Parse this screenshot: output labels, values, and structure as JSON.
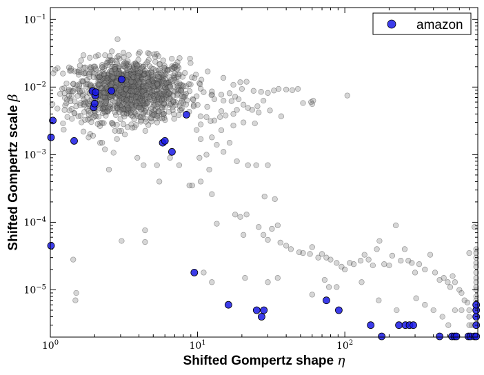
{
  "chart_data": {
    "type": "scatter",
    "xlabel": "Shifted Gompertz shape",
    "xlabel_symbol": "η",
    "ylabel": "Shifted Gompertz scale",
    "ylabel_symbol": "β",
    "x_scale": "log",
    "y_scale": "log",
    "xlim": [
      1,
      800
    ],
    "ylim": [
      2e-06,
      0.15
    ],
    "x_ticks": [
      {
        "value": 1,
        "label_base": "10",
        "label_exp": "0"
      },
      {
        "value": 10,
        "label_base": "10",
        "label_exp": "1"
      },
      {
        "value": 100,
        "label_base": "10",
        "label_exp": "2"
      }
    ],
    "y_ticks": [
      {
        "value": 1e-05,
        "label_base": "10",
        "label_exp": "−5"
      },
      {
        "value": 0.0001,
        "label_base": "10",
        "label_exp": "−4"
      },
      {
        "value": 0.001,
        "label_base": "10",
        "label_exp": "−3"
      },
      {
        "value": 0.01,
        "label_base": "10",
        "label_exp": "−2"
      },
      {
        "value": 0.1,
        "label_base": "10",
        "label_exp": "−1"
      }
    ],
    "grid": false,
    "legend": {
      "position": "top-right",
      "entries": [
        "amazon"
      ]
    },
    "colors": {
      "highlight": "#1a1ae6",
      "background_points": "#808080"
    },
    "series": [
      {
        "name": "amazon",
        "highlighted": true,
        "points": [
          [
            1.0,
            0.0018
          ],
          [
            1.0,
            4.5e-05
          ],
          [
            1.04,
            0.0032
          ],
          [
            1.45,
            0.0016
          ],
          [
            1.93,
            0.0087
          ],
          [
            1.97,
            0.005
          ],
          [
            2.0,
            0.0057
          ],
          [
            2.02,
            0.0075
          ],
          [
            2.03,
            0.0084
          ],
          [
            2.6,
            0.0088
          ],
          [
            3.05,
            0.013
          ],
          [
            5.8,
            0.0015
          ],
          [
            6.0,
            0.0016
          ],
          [
            6.7,
            0.0011
          ],
          [
            8.4,
            0.0039
          ],
          [
            9.5,
            1.8e-05
          ],
          [
            16.2,
            6e-06
          ],
          [
            25.2,
            5e-06
          ],
          [
            27.2,
            4e-06
          ],
          [
            28.2,
            5e-06
          ],
          [
            75.0,
            7e-06
          ],
          [
            91.0,
            5e-06
          ],
          [
            150.0,
            3e-06
          ],
          [
            178.0,
            2e-06
          ],
          [
            233.0,
            3e-06
          ],
          [
            258.0,
            3e-06
          ],
          [
            275.0,
            3e-06
          ],
          [
            292.0,
            3e-06
          ],
          [
            440.0,
            2e-06
          ],
          [
            534.0,
            2e-06
          ],
          [
            555.0,
            2e-06
          ],
          [
            573.0,
            2e-06
          ],
          [
            690.0,
            2e-06
          ],
          [
            712.0,
            2e-06
          ],
          [
            760.0,
            2e-06
          ],
          [
            780.0,
            2e-06
          ],
          [
            780.0,
            3e-06
          ],
          [
            780.0,
            4e-06
          ],
          [
            780.0,
            5e-06
          ],
          [
            780.0,
            6e-06
          ]
        ]
      },
      {
        "name": "",
        "highlighted": false,
        "cluster": {
          "center_x": 3.5,
          "center_y": 0.009,
          "spread_log10_x": 0.2,
          "spread_log10_y": 0.23,
          "count": 1200
        },
        "points": [
          [
            1.08,
            0.018
          ],
          [
            1.12,
            0.019
          ],
          [
            1.22,
            0.0029
          ],
          [
            1.35,
            0.0045
          ],
          [
            1.5,
            0.0052
          ],
          [
            1.55,
            0.0037
          ],
          [
            1.6,
            0.0058
          ],
          [
            1.68,
            0.0022
          ],
          [
            1.82,
            0.0018
          ],
          [
            2.25,
            0.0015
          ],
          [
            2.5,
            0.0006
          ],
          [
            2.35,
            0.0012
          ],
          [
            3.05,
            5.3e-05
          ],
          [
            4.4,
            7.6e-05
          ],
          [
            4.4,
            5.1e-05
          ],
          [
            1.43,
            2.8e-05
          ],
          [
            1.5,
            9e-06
          ],
          [
            1.48,
            7e-06
          ],
          [
            3.9,
            0.0009
          ],
          [
            4.3,
            0.0007
          ],
          [
            5.3,
            0.0007
          ],
          [
            6.5,
            0.0009
          ],
          [
            7.5,
            0.0007
          ],
          [
            5.5,
            0.0004
          ],
          [
            8.8,
            0.00035
          ],
          [
            10.3,
            0.0009
          ],
          [
            11.5,
            0.001
          ],
          [
            10.5,
            0.0017
          ],
          [
            12.5,
            0.0018
          ],
          [
            13.5,
            0.0014
          ],
          [
            14.5,
            0.0023
          ],
          [
            10.5,
            0.0028
          ],
          [
            11.5,
            0.0036
          ],
          [
            13.0,
            0.0032
          ],
          [
            14.5,
            0.0044
          ],
          [
            15.5,
            0.0038
          ],
          [
            17.5,
            0.004
          ],
          [
            18.5,
            0.0046
          ],
          [
            20.5,
            0.0055
          ],
          [
            22.0,
            0.0049
          ],
          [
            23.5,
            0.0046
          ],
          [
            25.5,
            0.0052
          ],
          [
            28.0,
            0.0063
          ],
          [
            30.0,
            0.0082
          ],
          [
            33.0,
            0.0089
          ],
          [
            27.0,
            0.0085
          ],
          [
            24.0,
            0.0088
          ],
          [
            20.0,
            0.0094
          ],
          [
            17.5,
            0.0108
          ],
          [
            19.5,
            0.0118
          ],
          [
            21.5,
            0.012
          ],
          [
            16.5,
            0.0081
          ],
          [
            14.5,
            0.0077
          ],
          [
            12.5,
            0.0086
          ],
          [
            11.0,
            0.0084
          ],
          [
            13.0,
            0.0066
          ],
          [
            15.0,
            0.0063
          ],
          [
            17.0,
            0.0062
          ],
          [
            18.0,
            0.0072
          ],
          [
            19.0,
            0.0066
          ],
          [
            52.0,
            0.0058
          ],
          [
            59.0,
            0.006
          ],
          [
            60.0,
            0.0056
          ],
          [
            61.0,
            0.0063
          ],
          [
            104.0,
            0.0075
          ],
          [
            16.5,
            0.0015
          ],
          [
            18.5,
            0.0008
          ],
          [
            15.0,
            0.0011
          ],
          [
            22.0,
            0.0007
          ],
          [
            25.0,
            0.0007
          ],
          [
            30.0,
            0.0007
          ],
          [
            12.0,
            0.0006
          ],
          [
            10.5,
            0.0004
          ],
          [
            12.5,
            0.00026
          ],
          [
            9.2,
            0.00035
          ],
          [
            18.0,
            0.00013
          ],
          [
            19.5,
            0.00012
          ],
          [
            21.5,
            0.00013
          ],
          [
            28.5,
            0.00024
          ],
          [
            33.5,
            0.00022
          ],
          [
            13.5,
            9.5e-05
          ],
          [
            20.5,
            6.5e-05
          ],
          [
            26.0,
            8.5e-05
          ],
          [
            28.0,
            6.5e-05
          ],
          [
            32.0,
            8e-05
          ],
          [
            35.0,
            9e-05
          ],
          [
            30.0,
            5.5e-05
          ],
          [
            36.5,
            5e-05
          ],
          [
            40.0,
            4.5e-05
          ],
          [
            43.0,
            4e-05
          ],
          [
            49.0,
            3.6e-05
          ],
          [
            52.0,
            3.5e-05
          ],
          [
            58.0,
            3.4e-05
          ],
          [
            60.0,
            4.3e-05
          ],
          [
            66.0,
            3e-05
          ],
          [
            70.0,
            3.4e-05
          ],
          [
            75.0,
            3e-05
          ],
          [
            80.0,
            2.8e-05
          ],
          [
            88.0,
            2.5e-05
          ],
          [
            95.0,
            2.2e-05
          ],
          [
            100.0,
            2e-05
          ],
          [
            108.0,
            2.5e-05
          ],
          [
            115.0,
            2.4e-05
          ],
          [
            128.0,
            2.7e-05
          ],
          [
            136.0,
            3.3e-05
          ],
          [
            145.0,
            2.8e-05
          ],
          [
            155.0,
            2.3e-05
          ],
          [
            165.0,
            4e-05
          ],
          [
            172.0,
            5.3e-05
          ],
          [
            185.0,
            2.4e-05
          ],
          [
            200.0,
            2.3e-05
          ],
          [
            210.0,
            3.2e-05
          ],
          [
            222.0,
            9e-05
          ],
          [
            240.0,
            2.7e-05
          ],
          [
            255.0,
            4e-05
          ],
          [
            270.0,
            2.7e-05
          ],
          [
            285.0,
            2.5e-05
          ],
          [
            300.0,
            1.8e-05
          ],
          [
            320.0,
            2.4e-05
          ],
          [
            350.0,
            2e-05
          ],
          [
            380.0,
            3.3e-05
          ],
          [
            410.0,
            1.8e-05
          ],
          [
            440.0,
            1.4e-05
          ],
          [
            470.0,
            1.5e-05
          ],
          [
            500.0,
            1.3e-05
          ],
          [
            520.0,
            1.1e-05
          ],
          [
            540.0,
            1.6e-05
          ],
          [
            560.0,
            1.3e-05
          ],
          [
            600.0,
            1e-05
          ],
          [
            620.0,
            9e-06
          ],
          [
            650.0,
            7e-06
          ],
          [
            680.0,
            6.5e-06
          ],
          [
            700.0,
            3.5e-05
          ],
          [
            730.0,
            3e-06
          ],
          [
            760.0,
            8.5e-05
          ],
          [
            780.0,
            3.5e-05
          ],
          [
            780.0,
            2.5e-05
          ],
          [
            780.0,
            1.5e-05
          ],
          [
            780.0,
            1e-05
          ],
          [
            780.0,
            8e-06
          ],
          [
            780.0,
            7e-06
          ],
          [
            780.0,
            4e-06
          ],
          [
            780.0,
            1.3e-05
          ],
          [
            780.0,
            1.1e-05
          ],
          [
            780.0,
            1.8e-05
          ],
          [
            780.0,
            2.2e-05
          ],
          [
            780.0,
            3e-05
          ],
          [
            780.0,
            4e-05
          ],
          [
            700.0,
            5e-06
          ],
          [
            700.0,
            4e-06
          ],
          [
            700.0,
            3e-06
          ],
          [
            620.0,
            5e-06
          ],
          [
            560.0,
            5e-06
          ],
          [
            505.0,
            3e-06
          ],
          [
            460.0,
            4e-06
          ],
          [
            130.0,
            1.3e-05
          ],
          [
            88.0,
            1.1e-05
          ],
          [
            60.0,
            8.5e-06
          ],
          [
            73.0,
            1.4e-05
          ],
          [
            78.0,
            1.1e-05
          ],
          [
            170.0,
            7e-06
          ],
          [
            225.0,
            5e-06
          ],
          [
            305.0,
            7.5e-06
          ],
          [
            350.0,
            6e-06
          ],
          [
            400.0,
            5e-06
          ],
          [
            35.0,
            1.5e-05
          ],
          [
            30.0,
            1.3e-05
          ],
          [
            21.0,
            1.5e-05
          ],
          [
            12.5,
            1.3e-05
          ],
          [
            11.0,
            1.8e-05
          ],
          [
            26.0,
            0.0042
          ],
          [
            31.0,
            0.0045
          ],
          [
            37.0,
            0.0037
          ],
          [
            24.5,
            0.0029
          ],
          [
            20.5,
            0.003
          ],
          [
            17.5,
            0.0027
          ],
          [
            14.2,
            0.0036
          ],
          [
            35.5,
            0.0094
          ],
          [
            40.0,
            0.0092
          ],
          [
            44.0,
            0.009
          ],
          [
            48.0,
            0.0094
          ]
        ]
      }
    ]
  }
}
